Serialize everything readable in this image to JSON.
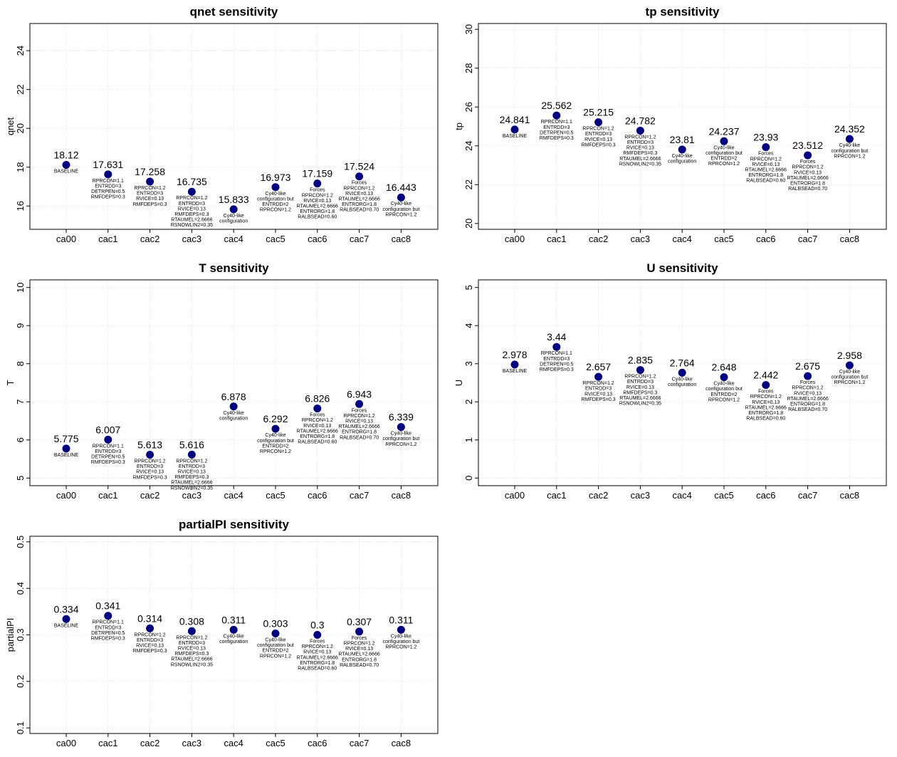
{
  "notes": {
    "ca00": [
      "BASELINE"
    ],
    "cac1": [
      "RPRCON=1.1",
      "ENTRDD=3",
      "DETRPEN=0.5",
      "RMFDEPS=0.3"
    ],
    "cac2": [
      "RPRCON=1.2",
      "ENTRDD=3",
      "RVICE=0.13",
      "RMFDEPS=0.3"
    ],
    "cac3": [
      "RPRCON=1.2",
      "ENTRDD=3",
      "RVICE=0.13",
      "RMFDEPS=0.3",
      "RTAUMEL=2.6666",
      "RSNOWLIN2=0.35"
    ],
    "cac4": [
      "Cy40-like",
      "configuration"
    ],
    "cac5": [
      "Cy40-like",
      "configuration but",
      "ENTRDD=2",
      "RPRCON=1.2"
    ],
    "cac6": [
      "Forces",
      "RPRCON=1.2",
      "RVICE=0.13",
      "RTAUMEL=2.6666",
      "ENTRORG=1.8",
      "RALBSEAD=0.60"
    ],
    "cac7": [
      "Forces",
      "RPRCON=1.2",
      "RVICE=0.13",
      "RTAUMEL=2.6666",
      "ENTRORG=1.8",
      "RALBSEAD=0.70"
    ],
    "cac8": [
      "Cy40-like",
      "configuration but",
      "RPRCON=1.2"
    ]
  },
  "point_color": "#00007f",
  "chart_data": [
    {
      "type": "scatter",
      "title": "qnet sensitivity",
      "ylabel": "qnet",
      "categories": [
        "ca00",
        "cac1",
        "cac2",
        "cac3",
        "cac4",
        "cac5",
        "cac6",
        "cac7",
        "cac8"
      ],
      "values": [
        18.12,
        17.631,
        17.258,
        16.735,
        15.833,
        16.973,
        17.159,
        17.524,
        16.443
      ],
      "value_labels": [
        "18.12",
        "17.631",
        "17.258",
        "16.735",
        "15.833",
        "16.973",
        "17.159",
        "17.524",
        "16.443"
      ],
      "ylim": [
        14.8,
        25.4
      ],
      "yticks": [
        16,
        18,
        20,
        22,
        24
      ],
      "ytick_labels": [
        "16",
        "18",
        "20",
        "22",
        "24"
      ],
      "grid": true
    },
    {
      "type": "scatter",
      "title": "tp sensitivity",
      "ylabel": "tp",
      "categories": [
        "ca00",
        "cac1",
        "cac2",
        "cac3",
        "cac4",
        "cac5",
        "cac6",
        "cac7",
        "cac8"
      ],
      "values": [
        24.841,
        25.562,
        25.215,
        24.782,
        23.81,
        24.237,
        23.93,
        23.512,
        24.352
      ],
      "value_labels": [
        "24.841",
        "25.562",
        "25.215",
        "24.782",
        "23.81",
        "24.237",
        "23.93",
        "23.512",
        "24.352"
      ],
      "ylim": [
        19.7,
        30.3
      ],
      "yticks": [
        20,
        22,
        24,
        26,
        28,
        30
      ],
      "ytick_labels": [
        "20",
        "22",
        "24",
        "26",
        "28",
        "30"
      ],
      "grid": true
    },
    {
      "type": "scatter",
      "title": "T sensitivity",
      "ylabel": "T",
      "categories": [
        "ca00",
        "cac1",
        "cac2",
        "cac3",
        "cac4",
        "cac5",
        "cac6",
        "cac7",
        "cac8"
      ],
      "values": [
        5.775,
        6.007,
        5.613,
        5.616,
        6.878,
        6.292,
        6.826,
        6.943,
        6.339
      ],
      "value_labels": [
        "5.775",
        "6.007",
        "5.613",
        "5.616",
        "6.878",
        "6.292",
        "6.826",
        "6.943",
        "6.339"
      ],
      "ylim": [
        4.8,
        10.2
      ],
      "yticks": [
        5,
        6,
        7,
        8,
        9,
        10
      ],
      "ytick_labels": [
        "5",
        "6",
        "7",
        "8",
        "9",
        "10"
      ],
      "grid": true
    },
    {
      "type": "scatter",
      "title": "U sensitivity",
      "ylabel": "U",
      "categories": [
        "ca00",
        "cac1",
        "cac2",
        "cac3",
        "cac4",
        "cac5",
        "cac6",
        "cac7",
        "cac8"
      ],
      "values": [
        2.978,
        3.44,
        2.657,
        2.835,
        2.764,
        2.648,
        2.442,
        2.675,
        2.958
      ],
      "value_labels": [
        "2.978",
        "3.44",
        "2.657",
        "2.835",
        "2.764",
        "2.648",
        "2.442",
        "2.675",
        "2.958"
      ],
      "ylim": [
        -0.2,
        5.2
      ],
      "yticks": [
        0,
        1,
        2,
        3,
        4,
        5
      ],
      "ytick_labels": [
        "0",
        "1",
        "2",
        "3",
        "4",
        "5"
      ],
      "grid": true
    },
    {
      "type": "scatter",
      "title": "partialPI sensitivity",
      "ylabel": "partialPI",
      "categories": [
        "ca00",
        "cac1",
        "cac2",
        "cac3",
        "cac4",
        "cac5",
        "cac6",
        "cac7",
        "cac8"
      ],
      "values": [
        0.334,
        0.341,
        0.314,
        0.308,
        0.311,
        0.303,
        0.3,
        0.307,
        0.311
      ],
      "value_labels": [
        "0.334",
        "0.341",
        "0.314",
        "0.308",
        "0.311",
        "0.303",
        "0.3",
        "0.307",
        "0.311"
      ],
      "ylim": [
        0.088,
        0.512
      ],
      "yticks": [
        0.1,
        0.2,
        0.3,
        0.4,
        0.5
      ],
      "ytick_labels": [
        "0.1",
        "0.2",
        "0.3",
        "0.4",
        "0.5"
      ],
      "grid": true
    }
  ]
}
